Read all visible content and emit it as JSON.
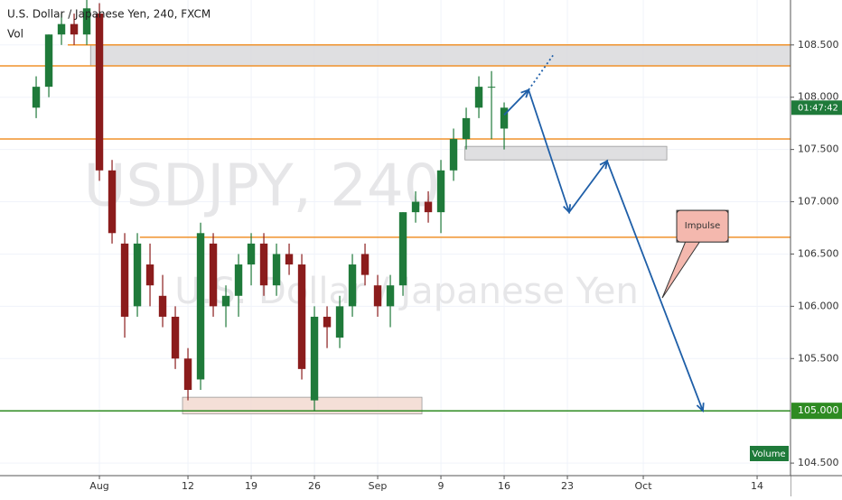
{
  "header": {
    "title": "U.S. Dollar / Japanese Yen, 240, FXCM",
    "indicator": "Vol"
  },
  "chart_data": {
    "type": "candlestick",
    "watermark": "USDJPY, 240",
    "watermark_subtitle": "U.S. Dollar / Japanese Yen",
    "x": [
      -5,
      -4,
      -3,
      -2,
      -1,
      0,
      1,
      2,
      3,
      4,
      5,
      6,
      7,
      8,
      9,
      10,
      11,
      12,
      13,
      14,
      15,
      16,
      17,
      18,
      19,
      20,
      21,
      22,
      23,
      24,
      25,
      26,
      27,
      28,
      29,
      30,
      31,
      32
    ],
    "open": [
      107.9,
      108.1,
      108.6,
      108.7,
      108.6,
      108.8,
      107.3,
      106.6,
      106.0,
      106.4,
      106.1,
      105.9,
      105.5,
      105.3,
      106.6,
      106.0,
      106.1,
      106.4,
      106.6,
      106.2,
      106.5,
      106.4,
      105.1,
      105.9,
      105.7,
      106.0,
      106.5,
      106.2,
      106.0,
      106.2,
      106.9,
      107.0,
      106.9,
      107.3,
      107.6,
      107.9,
      108.1,
      107.7
    ],
    "high": [
      108.2,
      108.6,
      108.8,
      108.8,
      108.95,
      108.9,
      107.4,
      106.7,
      106.7,
      106.6,
      106.3,
      106.0,
      105.6,
      106.8,
      106.7,
      106.2,
      106.5,
      106.7,
      106.7,
      106.6,
      106.6,
      106.5,
      106.0,
      106.0,
      106.1,
      106.5,
      106.6,
      106.3,
      106.3,
      106.9,
      107.1,
      107.1,
      107.4,
      107.7,
      107.9,
      108.2,
      108.25,
      107.95
    ],
    "low": [
      107.8,
      108.0,
      108.5,
      108.5,
      108.5,
      107.2,
      106.6,
      105.7,
      105.9,
      106.0,
      105.8,
      105.4,
      105.1,
      105.2,
      105.9,
      105.8,
      105.9,
      106.2,
      106.1,
      106.1,
      106.3,
      105.3,
      105.0,
      105.6,
      105.6,
      105.9,
      106.2,
      105.9,
      105.8,
      106.1,
      106.8,
      106.8,
      106.7,
      107.2,
      107.5,
      107.8,
      107.6,
      107.5
    ],
    "close": [
      108.1,
      108.6,
      108.7,
      108.6,
      108.85,
      107.3,
      106.7,
      105.9,
      106.6,
      106.2,
      105.9,
      105.5,
      105.2,
      106.7,
      106.0,
      106.1,
      106.4,
      106.6,
      106.2,
      106.5,
      106.4,
      105.4,
      105.9,
      105.8,
      106.0,
      106.4,
      106.3,
      106.0,
      106.2,
      106.9,
      107.0,
      106.9,
      107.3,
      107.6,
      107.8,
      108.1,
      108.1,
      107.9
    ],
    "up_color": "#1f7a3a",
    "down_color": "#8b1c1c",
    "ylim": [
      104.38,
      108.93
    ],
    "yticks": [
      {
        "value": 108.5,
        "label": "108.500"
      },
      {
        "value": 108,
        "label": "108.000"
      },
      {
        "value": 107.5,
        "label": "107.500"
      },
      {
        "value": 107,
        "label": "107.000"
      },
      {
        "value": 106.5,
        "label": "106.500"
      },
      {
        "value": 106,
        "label": "106.000"
      },
      {
        "value": 105.5,
        "label": "105.500"
      },
      {
        "value": 104.5,
        "label": "104.500"
      }
    ],
    "xlim": [
      -7.86,
      54.64
    ],
    "xticks": [
      {
        "value": 0,
        "label": "Aug"
      },
      {
        "value": 7,
        "label": "12"
      },
      {
        "value": 12,
        "label": "19"
      },
      {
        "value": 17,
        "label": "26"
      },
      {
        "value": 22,
        "label": "Sep"
      },
      {
        "value": 27,
        "label": "9"
      },
      {
        "value": 32,
        "label": "16"
      },
      {
        "value": 37,
        "label": "23"
      },
      {
        "value": 43,
        "label": "Oct"
      },
      {
        "value": 52,
        "label": "14"
      }
    ],
    "grid": true,
    "levels": [
      {
        "value": 108.5,
        "from": -2.5,
        "color": "#f0922b"
      },
      {
        "value": 108.3,
        "from": -7.86,
        "color": "#f0922b"
      },
      {
        "value": 107.6,
        "from": -7.86,
        "color": "#f0922b"
      },
      {
        "value": 106.66,
        "from": 3.2,
        "color": "#f0922b"
      },
      {
        "value": 105.0,
        "from": -7.86,
        "color": "#2e8b22"
      }
    ],
    "zones": [
      {
        "low": 108.3,
        "high": 108.5,
        "from": -0.7,
        "to": 54.64,
        "color": "#d9d9dc"
      },
      {
        "low": 107.4,
        "high": 107.53,
        "from": 28.9,
        "to": 44.86,
        "color": "#d9d9dc"
      },
      {
        "low": 104.97,
        "high": 105.13,
        "from": 6.57,
        "to": 25.5,
        "color": "#f2d9d0"
      }
    ],
    "projection": {
      "x": [
        32,
        33.93,
        37.14,
        40.14,
        47.71
      ],
      "y": [
        107.83,
        108.07,
        106.9,
        107.39,
        105.0
      ],
      "color": "#1f5fa8"
    },
    "projection_dotted": {
      "x": [
        33.93,
        35.86
      ],
      "y": [
        108.07,
        108.4
      ]
    },
    "annotation": {
      "text": "Impulse",
      "x": 44.5,
      "y": 106.08
    },
    "price_label": {
      "value": 105,
      "label": "105.000",
      "color": "#2e8b22"
    },
    "countdown": "01:47:42",
    "volume_label": "Volume"
  }
}
